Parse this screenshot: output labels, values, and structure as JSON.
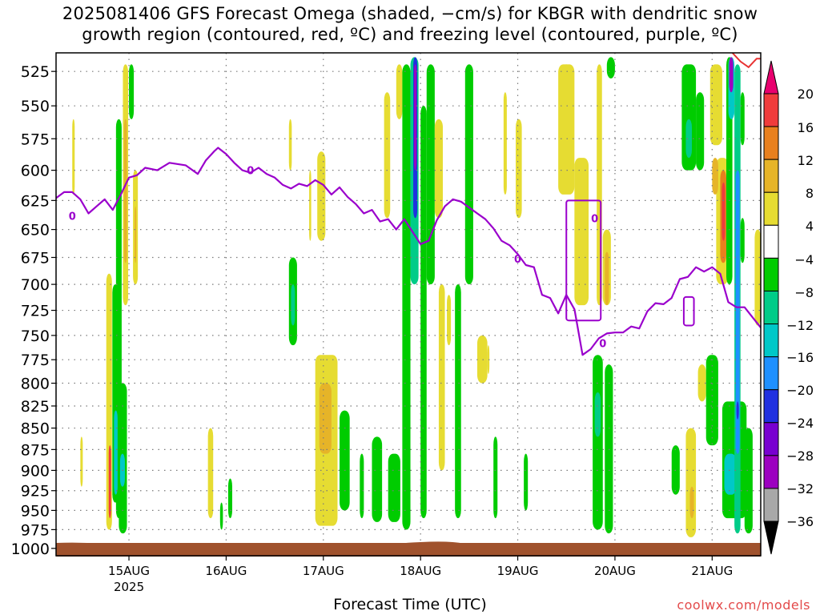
{
  "title": {
    "line1": "2025081406 GFS Forecast Omega (shaded, −cm/s) for KBGR with dendritic snow",
    "line2": "growth region (contoured, red, ºC) and freezing level (contoured, purple, ºC)"
  },
  "credit": "coolwx.com/models",
  "colors": {
    "grid": "#7a7a7a",
    "freezing_contour": "#9a00cc",
    "dgz_contour": "#e83232",
    "ground": "#a0522d"
  },
  "chart_data": {
    "type": "heatmap",
    "title": "2025081406 GFS Forecast Omega (shaded, −cm/s) for KBGR with dendritic snow growth region (contoured, red, ºC) and freezing level (contoured, purple, ºC)",
    "xlabel": "Forecast Time (UTC)",
    "ylabel": "",
    "x_ticks": [
      "15AUG",
      "16AUG",
      "17AUG",
      "18AUG",
      "19AUG",
      "20AUG",
      "21AUG"
    ],
    "x_tick_values": [
      24,
      48,
      72,
      96,
      120,
      144,
      168
    ],
    "x_sub_label": "2025",
    "xlim": [
      6,
      180
    ],
    "y_ticks": [
      525,
      550,
      575,
      600,
      625,
      650,
      675,
      700,
      725,
      750,
      775,
      800,
      825,
      850,
      875,
      900,
      925,
      950,
      975,
      1000
    ],
    "ylim": [
      1010,
      512
    ],
    "y_scale": "log",
    "grid": true,
    "colorbar": {
      "labels": [
        "20",
        "16",
        "12",
        "8",
        "4",
        "−4",
        "−8",
        "−12",
        "−16",
        "−20",
        "−24",
        "−28",
        "−32",
        "−36"
      ],
      "colors": [
        "#e8006e",
        "#f03c3c",
        "#e8801e",
        "#e6b428",
        "#e6dc32",
        "#ffffff",
        "#00cc00",
        "#00cc88",
        "#00c8c8",
        "#1e90ff",
        "#2030e0",
        "#7800d0",
        "#9c00c0",
        "#a8a8a8",
        "#000000"
      ]
    },
    "freezing_level": {
      "label": "0",
      "points": [
        [
          6,
          623
        ],
        [
          8,
          618
        ],
        [
          10,
          618
        ],
        [
          12,
          624
        ],
        [
          14,
          636
        ],
        [
          16,
          630
        ],
        [
          18,
          624
        ],
        [
          20,
          633
        ],
        [
          22,
          620
        ],
        [
          24,
          606
        ],
        [
          26,
          604
        ],
        [
          28,
          598
        ],
        [
          31,
          600
        ],
        [
          34,
          594
        ],
        [
          38,
          596
        ],
        [
          41,
          603
        ],
        [
          43,
          592
        ],
        [
          45,
          585
        ],
        [
          46,
          582
        ],
        [
          48,
          587
        ],
        [
          50,
          594
        ],
        [
          52,
          600
        ],
        [
          54,
          602
        ],
        [
          56,
          598
        ],
        [
          58,
          603
        ],
        [
          60,
          606
        ],
        [
          62,
          612
        ],
        [
          64,
          615
        ],
        [
          66,
          611
        ],
        [
          68,
          613
        ],
        [
          70,
          608
        ],
        [
          72,
          612
        ],
        [
          74,
          620
        ],
        [
          76,
          614
        ],
        [
          78,
          622
        ],
        [
          80,
          628
        ],
        [
          82,
          636
        ],
        [
          84,
          633
        ],
        [
          86,
          643
        ],
        [
          88,
          641
        ],
        [
          90,
          650
        ],
        [
          92,
          641
        ],
        [
          94,
          652
        ],
        [
          96,
          663
        ],
        [
          98,
          660
        ],
        [
          100,
          642
        ],
        [
          102,
          630
        ],
        [
          104,
          624
        ],
        [
          106,
          626
        ],
        [
          108,
          631
        ],
        [
          110,
          636
        ],
        [
          112,
          641
        ],
        [
          114,
          649
        ],
        [
          116,
          660
        ],
        [
          118,
          664
        ],
        [
          120,
          672
        ],
        [
          122,
          682
        ],
        [
          124,
          684
        ],
        [
          126,
          710
        ],
        [
          128,
          713
        ],
        [
          130,
          728
        ],
        [
          132,
          710
        ],
        [
          134,
          724
        ],
        [
          136,
          770
        ],
        [
          138,
          764
        ],
        [
          140,
          753
        ],
        [
          142,
          748
        ],
        [
          144,
          747
        ],
        [
          146,
          747
        ],
        [
          148,
          741
        ],
        [
          150,
          743
        ],
        [
          152,
          726
        ],
        [
          154,
          718
        ],
        [
          156,
          719
        ],
        [
          158,
          713
        ],
        [
          160,
          695
        ],
        [
          162,
          693
        ],
        [
          164,
          684
        ],
        [
          166,
          688
        ],
        [
          168,
          684
        ],
        [
          170,
          690
        ],
        [
          172,
          717
        ],
        [
          174,
          722
        ],
        [
          176,
          722
        ],
        [
          178,
          732
        ],
        [
          180,
          742
        ]
      ]
    },
    "dgz_contour": {
      "label": "",
      "points": [
        [
          173,
          512
        ],
        [
          175,
          518
        ],
        [
          177,
          522
        ],
        [
          179,
          516
        ],
        [
          180,
          516
        ]
      ]
    },
    "omega_regions": [
      {
        "x": [
          22.5,
          23.8
        ],
        "p": [
          520,
          720
        ],
        "value": 6
      },
      {
        "x": [
          22.8,
          23.5
        ],
        "p": [
          560,
          680
        ],
        "value": 10
      },
      {
        "x": [
          20.8,
          22.2
        ],
        "p": [
          560,
          960
        ],
        "value": -6
      },
      {
        "x": [
          24.0,
          25.2
        ],
        "p": [
          520,
          560
        ],
        "value": -6
      },
      {
        "x": [
          18.4,
          19.8
        ],
        "p": [
          690,
          975
        ],
        "value": 6
      },
      {
        "x": [
          19.9,
          21.4
        ],
        "p": [
          700,
          940
        ],
        "value": -6
      },
      {
        "x": [
          20.3,
          21.2
        ],
        "p": [
          830,
          930
        ],
        "value": -12
      },
      {
        "x": [
          19.0,
          19.6
        ],
        "p": [
          870,
          960
        ],
        "value": 17
      },
      {
        "x": [
          21.5,
          23.5
        ],
        "p": [
          800,
          980
        ],
        "value": -6
      },
      {
        "x": [
          21.8,
          23.0
        ],
        "p": [
          880,
          920
        ],
        "value": -12
      },
      {
        "x": [
          25.0,
          26.2
        ],
        "p": [
          600,
          700
        ],
        "value": 6
      },
      {
        "x": [
          25.4,
          25.8
        ],
        "p": [
          630,
          680
        ],
        "value": 10
      },
      {
        "x": [
          10.0,
          10.6
        ],
        "p": [
          560,
          620
        ],
        "value": 6
      },
      {
        "x": [
          12.0,
          12.6
        ],
        "p": [
          860,
          920
        ],
        "value": 6
      },
      {
        "x": [
          43.5,
          44.8
        ],
        "p": [
          850,
          960
        ],
        "value": 6
      },
      {
        "x": [
          46.5,
          47.2
        ],
        "p": [
          940,
          975
        ],
        "value": -6
      },
      {
        "x": [
          48.5,
          49.5
        ],
        "p": [
          910,
          960
        ],
        "value": -6
      },
      {
        "x": [
          63.5,
          64.2
        ],
        "p": [
          560,
          600
        ],
        "value": 6
      },
      {
        "x": [
          68.5,
          69.0
        ],
        "p": [
          600,
          660
        ],
        "value": 6
      },
      {
        "x": [
          70.5,
          72.5
        ],
        "p": [
          585,
          660
        ],
        "value": 6
      },
      {
        "x": [
          63.5,
          65.5
        ],
        "p": [
          675,
          760
        ],
        "value": -6
      },
      {
        "x": [
          64.0,
          65.0
        ],
        "p": [
          700,
          740
        ],
        "value": -10
      },
      {
        "x": [
          70.0,
          75.5
        ],
        "p": [
          770,
          970
        ],
        "value": 6
      },
      {
        "x": [
          71.0,
          74.0
        ],
        "p": [
          800,
          880
        ],
        "value": 10
      },
      {
        "x": [
          76.0,
          78.5
        ],
        "p": [
          830,
          950
        ],
        "value": -6
      },
      {
        "x": [
          87.0,
          88.5
        ],
        "p": [
          540,
          640
        ],
        "value": 6
      },
      {
        "x": [
          90.0,
          91.5
        ],
        "p": [
          520,
          560
        ],
        "value": 6
      },
      {
        "x": [
          81.0,
          82.0
        ],
        "p": [
          880,
          960
        ],
        "value": -6
      },
      {
        "x": [
          84.0,
          86.5
        ],
        "p": [
          860,
          965
        ],
        "value": -6
      },
      {
        "x": [
          88.0,
          91.0
        ],
        "p": [
          880,
          965
        ],
        "value": -6
      },
      {
        "x": [
          91.5,
          93.5
        ],
        "p": [
          520,
          975
        ],
        "value": -6
      },
      {
        "x": [
          93.5,
          95.5
        ],
        "p": [
          515,
          700
        ],
        "value": -10
      },
      {
        "x": [
          94.2,
          95.2
        ],
        "p": [
          515,
          640
        ],
        "value": -22
      },
      {
        "x": [
          94.4,
          95.0
        ],
        "p": [
          520,
          600
        ],
        "value": -30
      },
      {
        "x": [
          96.0,
          97.5
        ],
        "p": [
          550,
          960
        ],
        "value": -6
      },
      {
        "x": [
          97.5,
          99.5
        ],
        "p": [
          520,
          700
        ],
        "value": -6
      },
      {
        "x": [
          99.5,
          101.5
        ],
        "p": [
          560,
          640
        ],
        "value": 6
      },
      {
        "x": [
          100.5,
          102.0
        ],
        "p": [
          700,
          900
        ],
        "value": 6
      },
      {
        "x": [
          102.5,
          103.5
        ],
        "p": [
          710,
          760
        ],
        "value": 6
      },
      {
        "x": [
          104.5,
          106.0
        ],
        "p": [
          700,
          960
        ],
        "value": -6
      },
      {
        "x": [
          107.0,
          109.0
        ],
        "p": [
          520,
          700
        ],
        "value": -6
      },
      {
        "x": [
          110.0,
          112.5
        ],
        "p": [
          750,
          800
        ],
        "value": 6
      },
      {
        "x": [
          112.5,
          113.0
        ],
        "p": [
          760,
          790
        ],
        "value": 6
      },
      {
        "x": [
          114.0,
          115.0
        ],
        "p": [
          860,
          960
        ],
        "value": -6
      },
      {
        "x": [
          116.5,
          117.3
        ],
        "p": [
          540,
          620
        ],
        "value": 6
      },
      {
        "x": [
          119.5,
          121.0
        ],
        "p": [
          560,
          640
        ],
        "value": 6
      },
      {
        "x": [
          121.5,
          122.5
        ],
        "p": [
          880,
          950
        ],
        "value": -6
      },
      {
        "x": [
          130.0,
          134.0
        ],
        "p": [
          520,
          620
        ],
        "value": 6
      },
      {
        "x": [
          131.0,
          133.0
        ],
        "p": [
          520,
          560
        ],
        "value": 6
      },
      {
        "x": [
          134.0,
          137.5
        ],
        "p": [
          590,
          720
        ],
        "value": 6
      },
      {
        "x": [
          139.5,
          140.8
        ],
        "p": [
          520,
          720
        ],
        "value": 6
      },
      {
        "x": [
          141.0,
          143.0
        ],
        "p": [
          650,
          720
        ],
        "value": 6
      },
      {
        "x": [
          141.5,
          142.5
        ],
        "p": [
          670,
          720
        ],
        "value": 10
      },
      {
        "x": [
          142.0,
          144.0
        ],
        "p": [
          515,
          530
        ],
        "value": -6
      },
      {
        "x": [
          138.5,
          141.0
        ],
        "p": [
          770,
          975
        ],
        "value": -6
      },
      {
        "x": [
          139.0,
          140.5
        ],
        "p": [
          810,
          860
        ],
        "value": -10
      },
      {
        "x": [
          141.5,
          143.5
        ],
        "p": [
          780,
          980
        ],
        "value": -6
      },
      {
        "x": [
          161.5,
          164.0
        ],
        "p": [
          850,
          985
        ],
        "value": 6
      },
      {
        "x": [
          162.5,
          163.5
        ],
        "p": [
          920,
          960
        ],
        "value": 10
      },
      {
        "x": [
          158.0,
          160.0
        ],
        "p": [
          870,
          930
        ],
        "value": -6
      },
      {
        "x": [
          160.5,
          164.0
        ],
        "p": [
          520,
          600
        ],
        "value": -6
      },
      {
        "x": [
          161.5,
          163.0
        ],
        "p": [
          560,
          590
        ],
        "value": -10
      },
      {
        "x": [
          164.0,
          166.0
        ],
        "p": [
          540,
          600
        ],
        "value": -6
      },
      {
        "x": [
          164.5,
          166.5
        ],
        "p": [
          780,
          820
        ],
        "value": 6
      },
      {
        "x": [
          166.5,
          169.5
        ],
        "p": [
          770,
          870
        ],
        "value": -6
      },
      {
        "x": [
          167.5,
          170.5
        ],
        "p": [
          520,
          580
        ],
        "value": 6
      },
      {
        "x": [
          169.0,
          172.0
        ],
        "p": [
          590,
          700
        ],
        "value": 6
      },
      {
        "x": [
          170.0,
          171.5
        ],
        "p": [
          600,
          680
        ],
        "value": 12
      },
      {
        "x": [
          170.4,
          171.2
        ],
        "p": [
          610,
          660
        ],
        "value": 17
      },
      {
        "x": [
          168.0,
          169.5
        ],
        "p": [
          590,
          620
        ],
        "value": 10
      },
      {
        "x": [
          170.5,
          176.5
        ],
        "p": [
          820,
          960
        ],
        "value": -6
      },
      {
        "x": [
          171.0,
          174.0
        ],
        "p": [
          880,
          930
        ],
        "value": -12
      },
      {
        "x": [
          171.5,
          173.0
        ],
        "p": [
          515,
          700
        ],
        "value": -6
      },
      {
        "x": [
          172.0,
          173.5
        ],
        "p": [
          515,
          560
        ],
        "value": -12
      },
      {
        "x": [
          172.2,
          173.2
        ],
        "p": [
          515,
          540
        ],
        "value": -30
      },
      {
        "x": [
          173.5,
          175.0
        ],
        "p": [
          520,
          980
        ],
        "value": -10
      },
      {
        "x": [
          173.8,
          174.8
        ],
        "p": [
          600,
          880
        ],
        "value": -16
      },
      {
        "x": [
          174.0,
          174.6
        ],
        "p": [
          820,
          840
        ],
        "value": -22
      },
      {
        "x": [
          175.0,
          176.0
        ],
        "p": [
          540,
          580
        ],
        "value": -6
      },
      {
        "x": [
          175.0,
          176.0
        ],
        "p": [
          640,
          680
        ],
        "value": -6
      },
      {
        "x": [
          176.0,
          178.0
        ],
        "p": [
          850,
          980
        ],
        "value": -6
      },
      {
        "x": [
          178.5,
          180.0
        ],
        "p": [
          650,
          740
        ],
        "value": 6
      }
    ]
  }
}
